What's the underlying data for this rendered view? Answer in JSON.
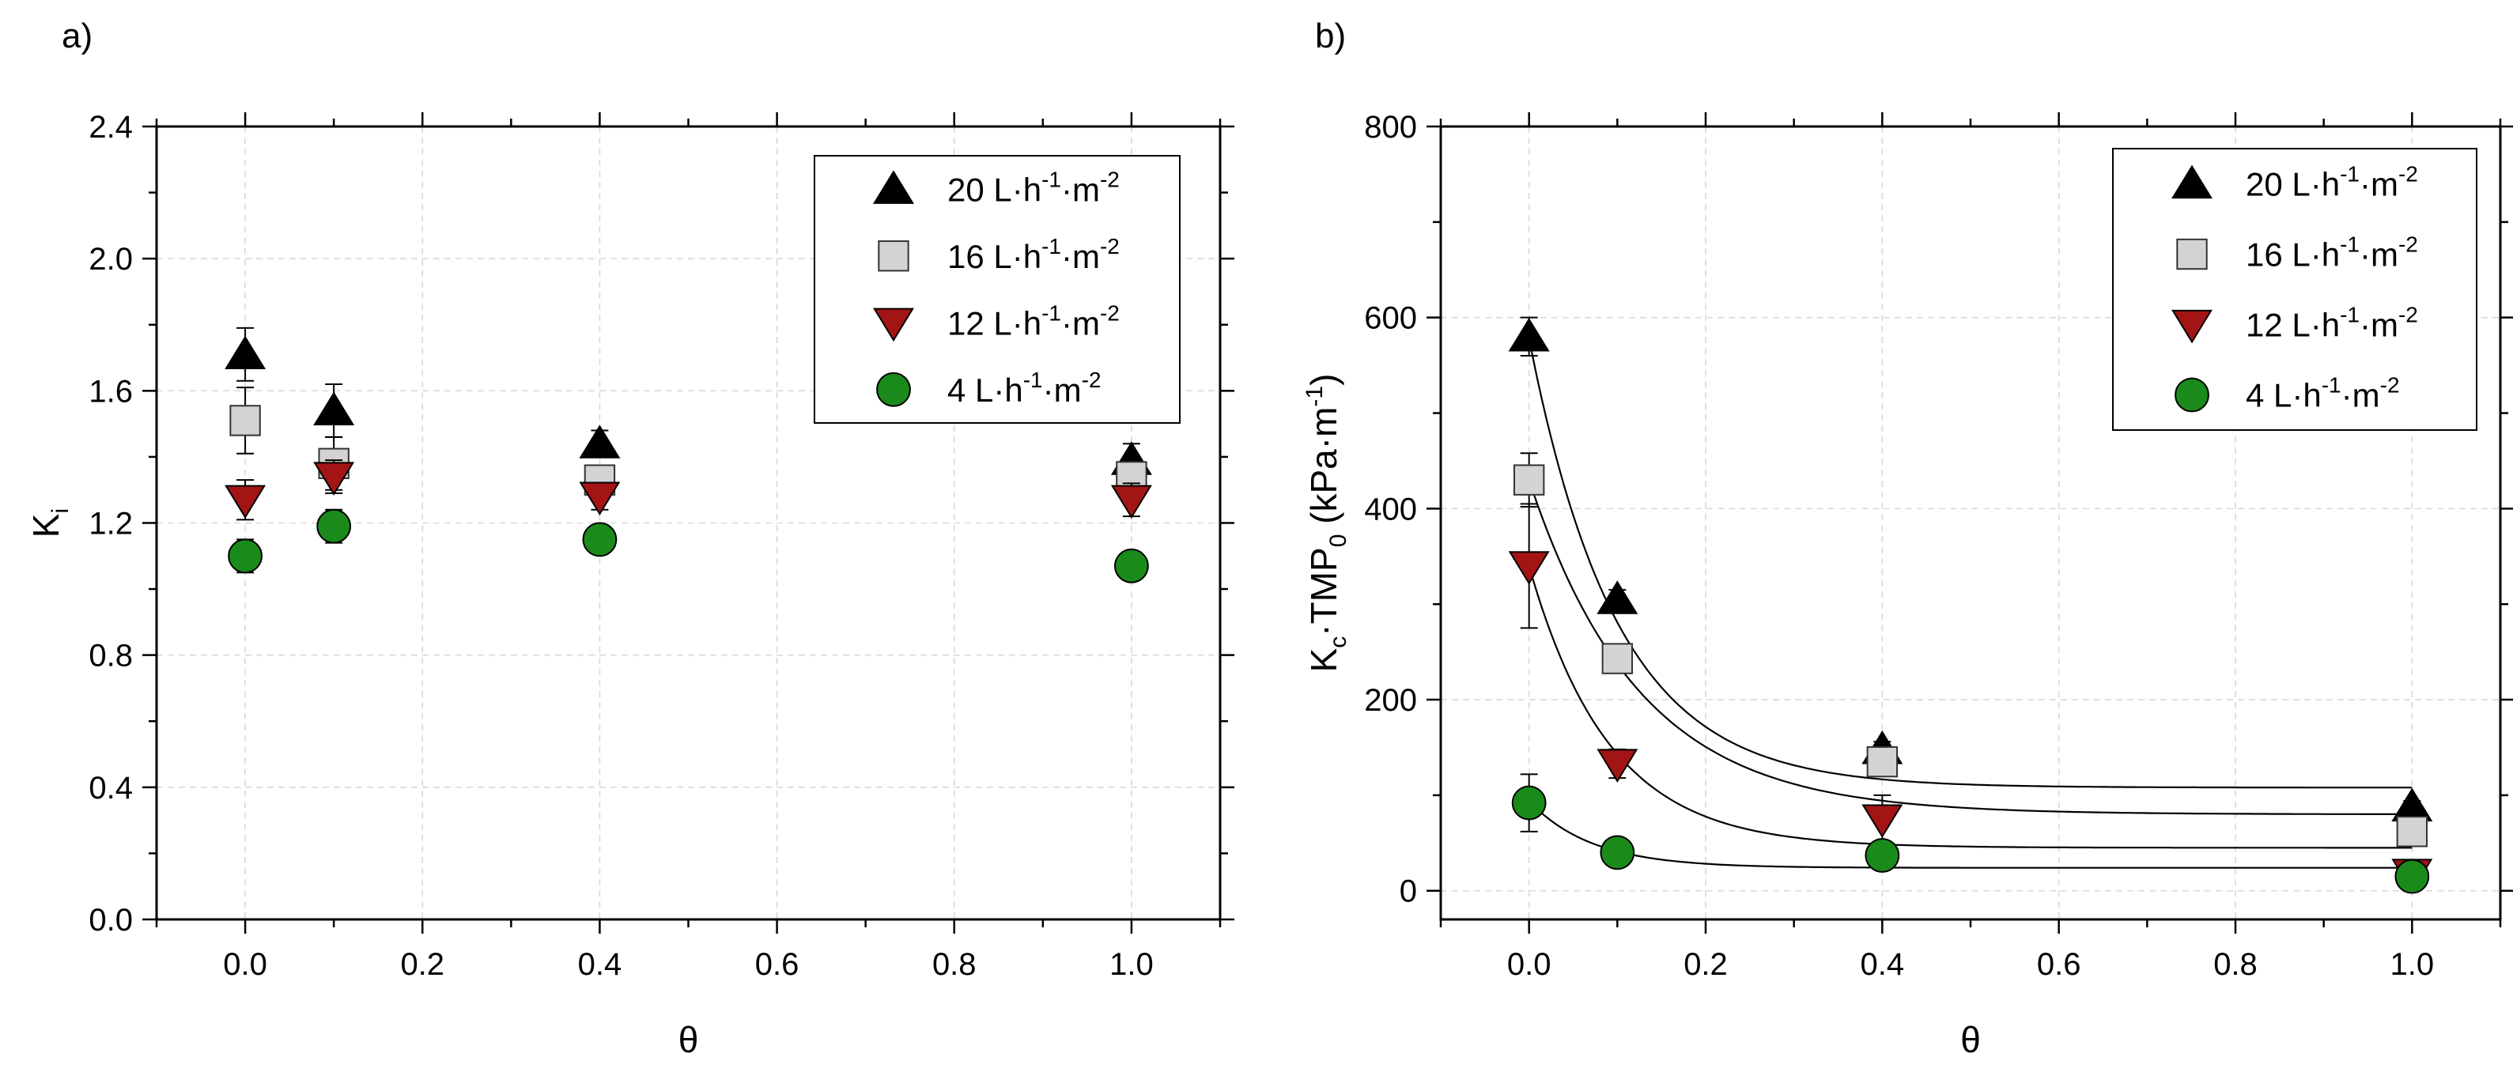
{
  "chart_data": [
    {
      "type": "scatter",
      "panel_label": "a)",
      "xlabel": "θ",
      "ylabel_main": "K",
      "ylabel_sub": "i",
      "xlim": [
        -0.1,
        1.1
      ],
      "ylim": [
        0.0,
        2.4
      ],
      "xticks": [
        "0.0",
        "0.2",
        "0.4",
        "0.6",
        "0.8",
        "1.0"
      ],
      "yticks": [
        "0.0",
        "0.4",
        "0.8",
        "1.2",
        "1.6",
        "2.0",
        "2.4"
      ],
      "grid": true,
      "legend_position": "top-right",
      "series": [
        {
          "name": "20 L·h⁻¹·m⁻²",
          "name_parts": [
            "20 L·h",
            "-1",
            "·m",
            "-2"
          ],
          "marker": "triangle-up",
          "color": "#000000",
          "x": [
            0.0,
            0.1,
            0.4,
            1.0
          ],
          "y": [
            1.71,
            1.54,
            1.44,
            1.39
          ],
          "err": [
            0.08,
            0.08,
            0.04,
            0.05
          ]
        },
        {
          "name": "16 L·h⁻¹·m⁻²",
          "name_parts": [
            "16 L·h",
            "-1",
            "·m",
            "-2"
          ],
          "marker": "square",
          "color": "#d3d3d3",
          "x": [
            0.0,
            0.1,
            0.4,
            1.0
          ],
          "y": [
            1.51,
            1.38,
            1.33,
            1.34
          ],
          "err": [
            0.1,
            0.08,
            0.04,
            0.04
          ]
        },
        {
          "name": "12 L·h⁻¹·m⁻²",
          "name_parts": [
            "12 L·h",
            "-1",
            "·m",
            "-2"
          ],
          "marker": "triangle-down",
          "color": "#a31515",
          "x": [
            0.0,
            0.1,
            0.4,
            1.0
          ],
          "y": [
            1.27,
            1.34,
            1.28,
            1.27
          ],
          "err": [
            0.06,
            0.05,
            0.04,
            0.05
          ]
        },
        {
          "name": "4 L·h⁻¹·m⁻²",
          "name_parts": [
            "4 L·h",
            "-1",
            "·m",
            "-2"
          ],
          "marker": "circle",
          "color": "#1a8a1a",
          "x": [
            0.0,
            0.1,
            0.4,
            1.0
          ],
          "y": [
            1.1,
            1.19,
            1.15,
            1.07
          ],
          "err": [
            0.05,
            0.05,
            0.02,
            0.02
          ]
        }
      ]
    },
    {
      "type": "scatter",
      "panel_label": "b)",
      "xlabel": "θ",
      "ylabel_main": "K",
      "ylabel_sub": "c",
      "ylabel_mid": "·TMP",
      "ylabel_sub2": "0",
      "ylabel_units": " (kPa·m",
      "ylabel_units_sup": "-1",
      "ylabel_close": ")",
      "xlim": [
        -0.1,
        1.1
      ],
      "ylim": [
        -30,
        800
      ],
      "xticks": [
        "0.0",
        "0.2",
        "0.4",
        "0.6",
        "0.8",
        "1.0"
      ],
      "yticks": [
        "0",
        "200",
        "400",
        "600",
        "800"
      ],
      "grid": true,
      "legend_position": "top-right",
      "series": [
        {
          "name": "20 L·h⁻¹·m⁻²",
          "name_parts": [
            "20 L·h",
            "-1",
            "·m",
            "-2"
          ],
          "marker": "triangle-up",
          "color": "#000000",
          "x": [
            0.0,
            0.1,
            0.4,
            1.0
          ],
          "y": [
            580,
            305,
            148,
            88
          ],
          "err": [
            20,
            10,
            8,
            6
          ],
          "fit": {
            "a": 470,
            "b": 108,
            "k": 10.0
          }
        },
        {
          "name": "16 L·h⁻¹·m⁻²",
          "name_parts": [
            "16 L·h",
            "-1",
            "·m",
            "-2"
          ],
          "marker": "square",
          "color": "#d3d3d3",
          "x": [
            0.0,
            0.1,
            0.4,
            1.0
          ],
          "y": [
            430,
            243,
            135,
            62
          ],
          "err": [
            28,
            15,
            8,
            8
          ],
          "fit": {
            "a": 350,
            "b": 80,
            "k": 8.0
          }
        },
        {
          "name": "12 L·h⁻¹·m⁻²",
          "name_parts": [
            "12 L·h",
            "-1",
            "·m",
            "-2"
          ],
          "marker": "triangle-down",
          "color": "#a31515",
          "x": [
            0.0,
            0.1,
            0.4,
            1.0
          ],
          "y": [
            340,
            133,
            75,
            18
          ],
          "err": [
            65,
            15,
            25,
            5
          ],
          "fit": {
            "a": 295,
            "b": 45,
            "k": 11.0
          }
        },
        {
          "name": "4 L·h⁻¹·m⁻²",
          "name_parts": [
            "4 L·h",
            "-1",
            "·m",
            "-2"
          ],
          "marker": "circle",
          "color": "#1a8a1a",
          "x": [
            0.0,
            0.1,
            0.4,
            1.0
          ],
          "y": [
            92,
            40,
            37,
            15
          ],
          "err": [
            30,
            6,
            4,
            5
          ],
          "fit": {
            "a": 70,
            "b": 24,
            "k": 14.0
          }
        }
      ]
    }
  ]
}
